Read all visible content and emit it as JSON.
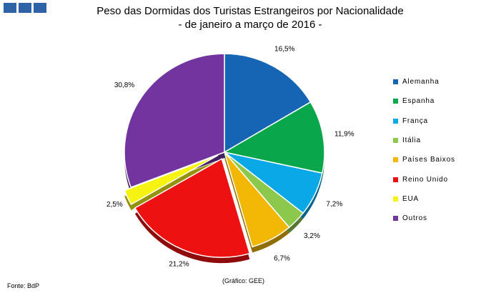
{
  "header": {
    "title_line1": "Peso das Dormidas dos Turistas Estrangeiros por Nacionalidade",
    "title_line2": "- de janeiro a março de 2016 -"
  },
  "footer": {
    "source": "Fonte: BdP",
    "credit": "(Gráfico: GEE)"
  },
  "chart_data": {
    "type": "pie",
    "title": "Peso das Dormidas dos Turistas Estrangeiros por Nacionalidade",
    "subtitle": "- de janeiro a março de 2016 -",
    "start_angle_deg": 0,
    "direction": "clockwise",
    "legend_position": "right",
    "slices": [
      {
        "name": "Alemanha",
        "value": 16.5,
        "label": "16,5%",
        "color": "#1565b4",
        "exploded": false
      },
      {
        "name": "Espanha",
        "value": 11.9,
        "label": "11,9%",
        "color": "#0aa64c",
        "exploded": false
      },
      {
        "name": "França",
        "value": 7.2,
        "label": "7,2%",
        "color": "#0aa8e6",
        "exploded": false
      },
      {
        "name": "Itália",
        "value": 3.2,
        "label": "3,2%",
        "color": "#8cc84b",
        "exploded": false
      },
      {
        "name": "Países Baixos",
        "value": 6.7,
        "label": "6,7%",
        "color": "#f2b705",
        "exploded": false
      },
      {
        "name": "Reino Unido",
        "value": 21.2,
        "label": "21,2%",
        "color": "#ee1111",
        "exploded": true
      },
      {
        "name": "EUA",
        "value": 2.5,
        "label": "2,5%",
        "color": "#f6f313",
        "exploded": true
      },
      {
        "name": "Outros",
        "value": 30.8,
        "label": "30,8%",
        "color": "#7235a0",
        "exploded": false
      }
    ]
  }
}
